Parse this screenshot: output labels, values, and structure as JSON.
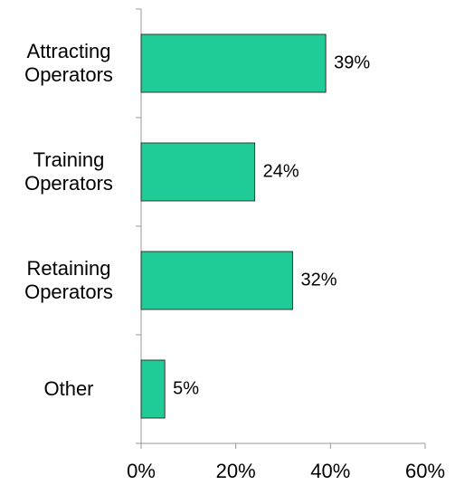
{
  "chart_data": {
    "type": "bar",
    "orientation": "horizontal",
    "categories": [
      "Attracting Operators",
      "Training Operators",
      "Retaining Operators",
      "Other"
    ],
    "values": [
      39,
      24,
      32,
      5
    ],
    "value_labels": [
      "39%",
      "24%",
      "32%",
      "5%"
    ],
    "color": "#1fcc97",
    "xlim": [
      0,
      60
    ],
    "xticks": [
      {
        "value": 0,
        "label": "0%"
      },
      {
        "value": 20,
        "label": "20%"
      },
      {
        "value": 40,
        "label": "40%"
      },
      {
        "value": 60,
        "label": "60%"
      }
    ],
    "grid": false
  }
}
